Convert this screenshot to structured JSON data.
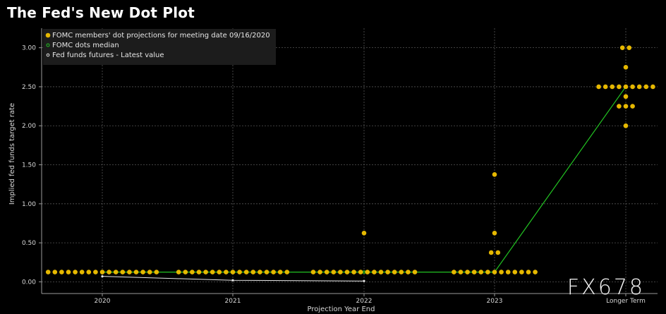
{
  "title": "The Fed's New Dot Plot",
  "watermark": "FX678",
  "chart_data": {
    "type": "scatter",
    "title": "The Fed's New Dot Plot",
    "xlabel": "Projection Year End",
    "ylabel": "Implied fed funds target rate",
    "categories": [
      "2020",
      "2021",
      "2022",
      "2023",
      "Longer Term"
    ],
    "ylim": [
      -0.15,
      3.25
    ],
    "yticks": [
      "0.00",
      "0.50",
      "1.00",
      "1.50",
      "2.00",
      "2.50",
      "3.00"
    ],
    "grid": true,
    "legend_position": "top-left",
    "legend": [
      "FOMC members' dot projections for meeting date 09/16/2020",
      "FOMC dots median",
      "Fed funds futures - Latest value"
    ],
    "colors": {
      "dots": "#e6b800",
      "median": "#22c322",
      "futures": "#e6e6e6",
      "grid": "#555555"
    },
    "series": [
      {
        "name": "FOMC members' dot projections for meeting date 09/16/2020",
        "kind": "dots",
        "points": [
          {
            "x": "2020",
            "y": 0.125,
            "count": 17
          },
          {
            "x": "2021",
            "y": 0.125,
            "count": 17
          },
          {
            "x": "2022",
            "y": 0.125,
            "count": 16
          },
          {
            "x": "2022",
            "y": 0.625,
            "count": 1
          },
          {
            "x": "2023",
            "y": 0.125,
            "count": 13
          },
          {
            "x": "2023",
            "y": 0.375,
            "count": 2
          },
          {
            "x": "2023",
            "y": 0.625,
            "count": 1
          },
          {
            "x": "2023",
            "y": 1.375,
            "count": 1
          },
          {
            "x": "Longer Term",
            "y": 2.0,
            "count": 1
          },
          {
            "x": "Longer Term",
            "y": 2.25,
            "count": 3
          },
          {
            "x": "Longer Term",
            "y": 2.375,
            "count": 1
          },
          {
            "x": "Longer Term",
            "y": 2.5,
            "count": 9
          },
          {
            "x": "Longer Term",
            "y": 2.75,
            "count": 1
          },
          {
            "x": "Longer Term",
            "y": 3.0,
            "count": 2
          }
        ]
      },
      {
        "name": "FOMC dots median",
        "kind": "line",
        "x": [
          "2020",
          "2021",
          "2022",
          "2023",
          "Longer Term"
        ],
        "values": [
          0.125,
          0.125,
          0.125,
          0.125,
          2.5
        ]
      },
      {
        "name": "Fed funds futures - Latest value",
        "kind": "line",
        "x": [
          "2020",
          "2021",
          "2022"
        ],
        "values": [
          0.07,
          0.02,
          0.01
        ]
      }
    ]
  }
}
